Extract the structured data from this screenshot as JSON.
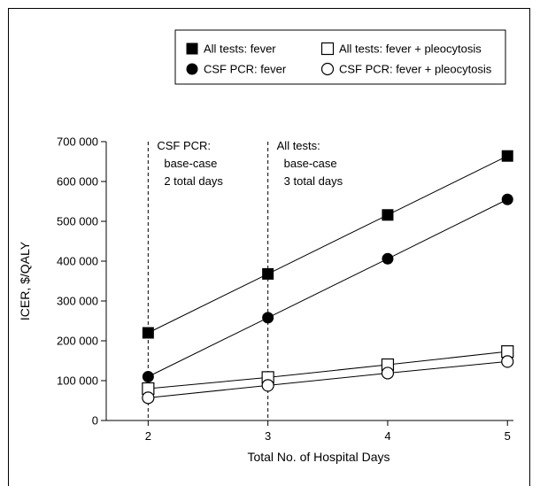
{
  "chart_data": {
    "type": "line",
    "title": "",
    "xlabel": "Total No. of Hospital Days",
    "ylabel": "ICER, $/QALY",
    "x": [
      2,
      3,
      4,
      5
    ],
    "xlim": [
      1.65,
      5.05
    ],
    "ylim": [
      0,
      700000
    ],
    "x_ticks": [
      2,
      3,
      4,
      5
    ],
    "y_ticks": [
      0,
      100000,
      200000,
      300000,
      400000,
      500000,
      600000,
      700000
    ],
    "y_tick_labels": [
      "0",
      "100 000",
      "200 000",
      "300 000",
      "400 000",
      "500 000",
      "600 000",
      "700 000"
    ],
    "grid": false,
    "legend_placement": "top-right",
    "series": [
      {
        "name": "All tests: fever",
        "marker": "filled-square",
        "values": [
          220000,
          368000,
          516000,
          664000
        ]
      },
      {
        "name": "CSF PCR: fever",
        "marker": "filled-circle",
        "values": [
          110000,
          258000,
          406000,
          555000
        ]
      },
      {
        "name": "All tests: fever + pleocytosis",
        "marker": "open-square",
        "values": [
          80000,
          108000,
          140000,
          173000
        ]
      },
      {
        "name": "CSF PCR: fever + pleocytosis",
        "marker": "open-circle",
        "values": [
          57000,
          88000,
          119000,
          148000
        ]
      }
    ],
    "annotations": [
      {
        "x": 2,
        "lines": [
          "CSF PCR:",
          "base-case",
          "2 total days"
        ]
      },
      {
        "x": 3,
        "lines": [
          "All tests:",
          "base-case",
          "3 total days"
        ]
      }
    ]
  }
}
